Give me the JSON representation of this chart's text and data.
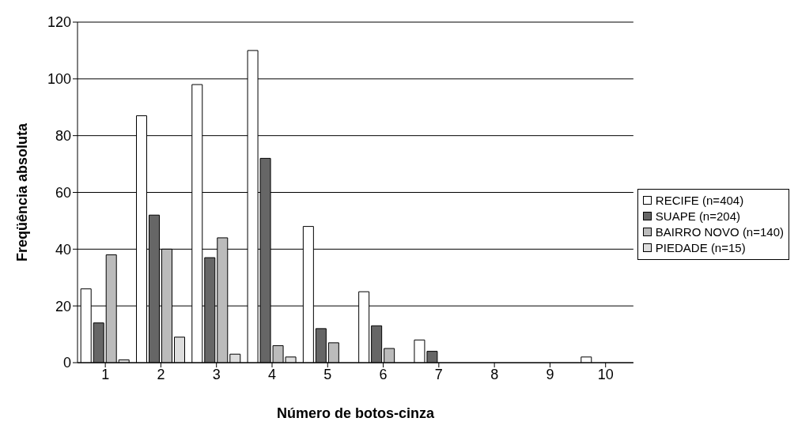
{
  "chart_data": {
    "type": "bar",
    "xlabel": "Número de botos-cinza",
    "ylabel": "Freqüência absoluta",
    "categories": [
      "1",
      "2",
      "3",
      "4",
      "5",
      "6",
      "7",
      "8",
      "9",
      "10"
    ],
    "series": [
      {
        "name": "RECIFE (n=404)",
        "color": "#ffffff",
        "values": [
          26,
          87,
          98,
          110,
          48,
          25,
          8,
          0,
          0,
          2
        ]
      },
      {
        "name": "SUAPE (n=204)",
        "color": "#666666",
        "values": [
          14,
          52,
          37,
          72,
          12,
          13,
          4,
          0,
          0,
          0
        ]
      },
      {
        "name": "BAIRRO NOVO (n=140)",
        "color": "#bbbbbb",
        "values": [
          38,
          40,
          44,
          6,
          7,
          5,
          0,
          0,
          0,
          0
        ]
      },
      {
        "name": "PIEDADE (n=15)",
        "color": "#dddddd",
        "values": [
          1,
          9,
          3,
          2,
          0,
          0,
          0,
          0,
          0,
          0
        ]
      }
    ],
    "ylim": [
      0,
      120
    ],
    "yticks": [
      0,
      20,
      40,
      60,
      80,
      100,
      120
    ],
    "grid": "y",
    "legend": "right"
  }
}
